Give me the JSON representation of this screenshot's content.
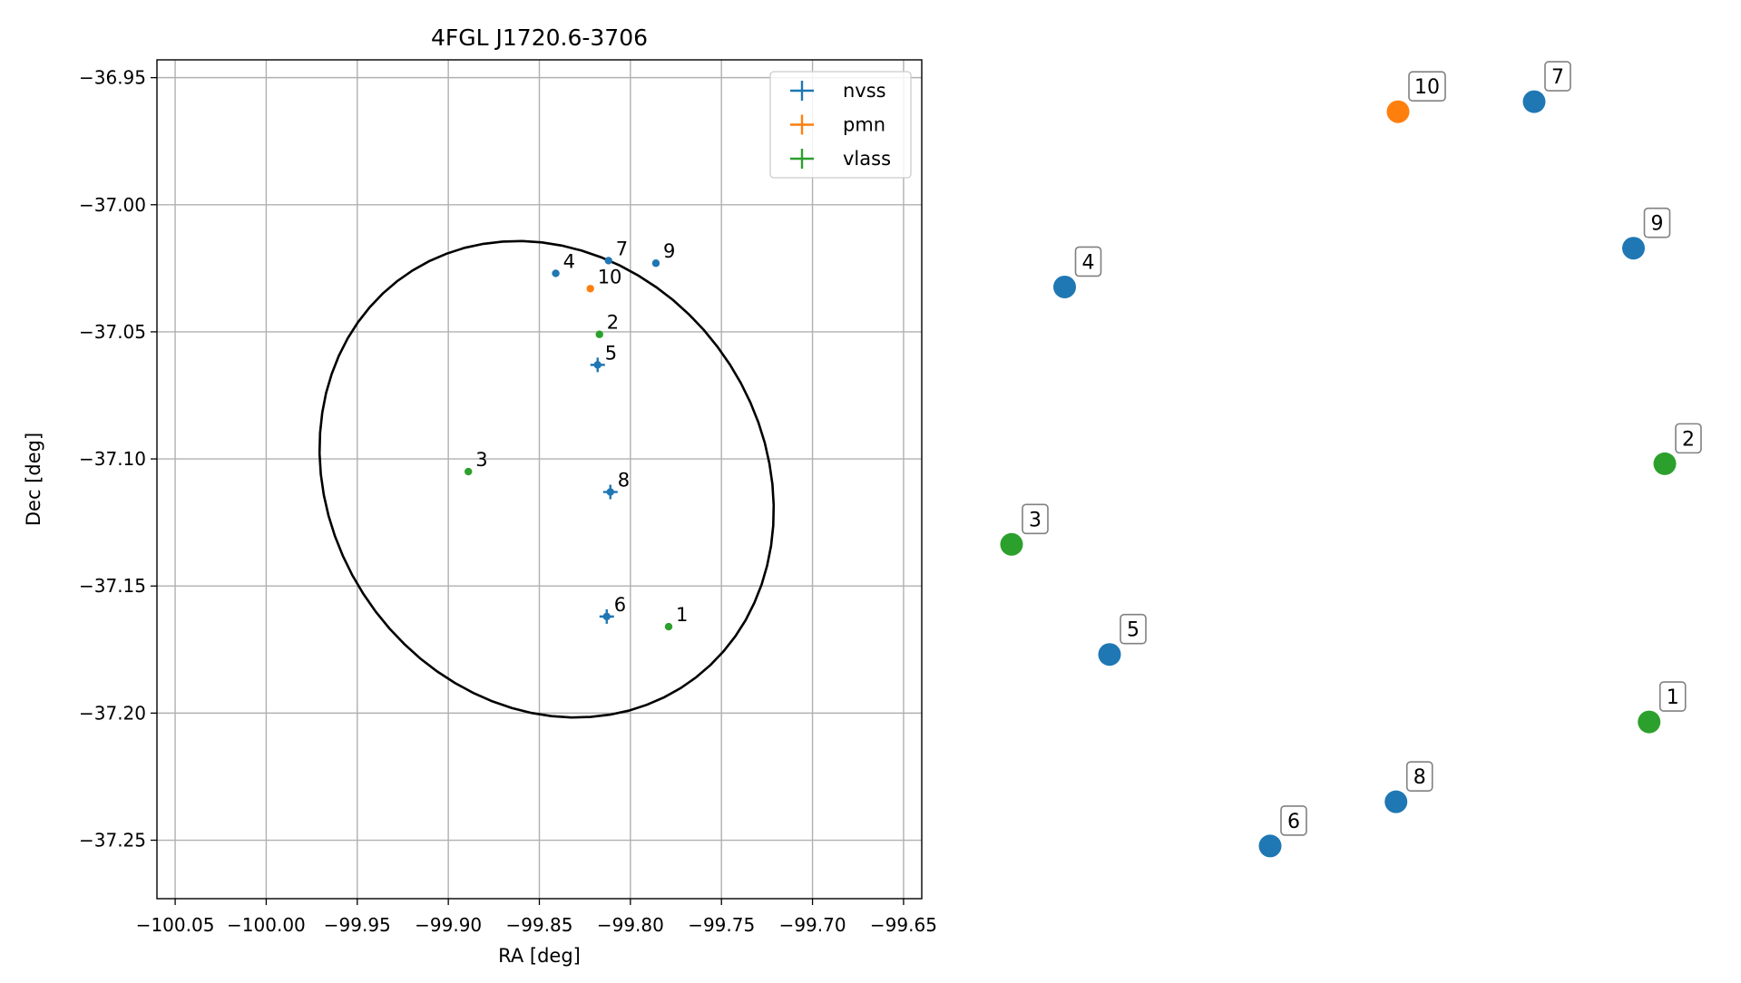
{
  "chart_data": [
    {
      "type": "scatter",
      "title": "4FGL J1720.6-3706",
      "xlabel": "RA [deg]",
      "ylabel": "Dec [deg]",
      "xlim": [
        -100.06,
        -99.64
      ],
      "ylim": [
        -37.273,
        -36.943
      ],
      "xticks": [
        -100.05,
        -100.0,
        -99.95,
        -99.9,
        -99.85,
        -99.8,
        -99.75,
        -99.7,
        -99.65
      ],
      "xtick_labels": [
        "−100.05",
        "−100.00",
        "−99.95",
        "−99.90",
        "−99.85",
        "−99.80",
        "−99.75",
        "−99.70",
        "−99.65"
      ],
      "yticks": [
        -36.95,
        -37.0,
        -37.05,
        -37.1,
        -37.15,
        -37.2,
        -37.25
      ],
      "ytick_labels": [
        "−36.95",
        "−37.00",
        "−37.05",
        "−37.10",
        "−37.15",
        "−37.20",
        "−37.25"
      ],
      "grid": true,
      "legend_position": "top-right",
      "ellipse": {
        "center": [
          -99.846,
          -37.108
        ],
        "semi_x": 0.126,
        "semi_y": 0.092,
        "angle_deg": -12
      },
      "series": [
        {
          "name": "nvss",
          "color": "#1f77b4",
          "points": [
            {
              "label": "4",
              "x": -99.841,
              "y": -37.027,
              "err": false
            },
            {
              "label": "5",
              "x": -99.818,
              "y": -37.063,
              "err": true
            },
            {
              "label": "6",
              "x": -99.813,
              "y": -37.162,
              "err": true
            },
            {
              "label": "7",
              "x": -99.812,
              "y": -37.022,
              "err": false
            },
            {
              "label": "8",
              "x": -99.811,
              "y": -37.113,
              "err": true
            },
            {
              "label": "9",
              "x": -99.786,
              "y": -37.023,
              "err": false
            }
          ]
        },
        {
          "name": "pmn",
          "color": "#ff7f0e",
          "points": [
            {
              "label": "10",
              "x": -99.822,
              "y": -37.033,
              "err": false
            }
          ]
        },
        {
          "name": "vlass",
          "color": "#2ca02c",
          "points": [
            {
              "label": "1",
              "x": -99.779,
              "y": -37.166,
              "err": false
            },
            {
              "label": "2",
              "x": -99.817,
              "y": -37.051,
              "err": false
            },
            {
              "label": "3",
              "x": -99.889,
              "y": -37.105,
              "err": false
            }
          ]
        }
      ]
    },
    {
      "type": "scatter",
      "title": "",
      "points": [
        {
          "label": "1",
          "color": "#2ca02c",
          "x": 0.957,
          "y": 0.18
        },
        {
          "label": "2",
          "color": "#2ca02c",
          "x": 0.98,
          "y": 0.513
        },
        {
          "label": "3",
          "color": "#2ca02c",
          "x": 0.02,
          "y": 0.409
        },
        {
          "label": "4",
          "color": "#1f77b4",
          "x": 0.098,
          "y": 0.741
        },
        {
          "label": "5",
          "color": "#1f77b4",
          "x": 0.164,
          "y": 0.267
        },
        {
          "label": "6",
          "color": "#1f77b4",
          "x": 0.4,
          "y": 0.02
        },
        {
          "label": "7",
          "color": "#1f77b4",
          "x": 0.788,
          "y": 0.98
        },
        {
          "label": "8",
          "color": "#1f77b4",
          "x": 0.585,
          "y": 0.077
        },
        {
          "label": "9",
          "color": "#1f77b4",
          "x": 0.934,
          "y": 0.791
        },
        {
          "label": "10",
          "color": "#ff7f0e",
          "x": 0.588,
          "y": 0.967
        }
      ]
    }
  ]
}
